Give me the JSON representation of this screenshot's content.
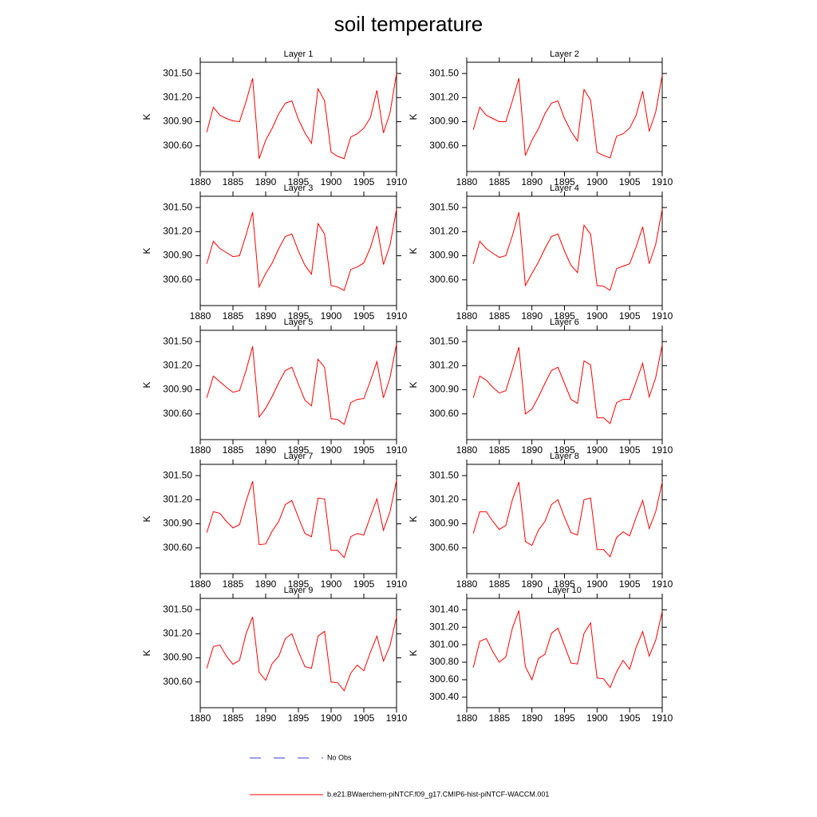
{
  "title": "soil temperature",
  "legend": [
    {
      "name": "No Obs",
      "color": "#3b3bd6",
      "dashed": true
    },
    {
      "name": "b.e21.BWaerchem-piNTCF.f09_g17.CMIP6-hist-piNTCF-WACCM.001",
      "color": "#ff0000",
      "dashed": false
    }
  ],
  "chart_data": [
    {
      "type": "line",
      "title": "Layer 1",
      "y_label": "K",
      "color": "#ff0000",
      "x": [
        1881,
        1882,
        1883,
        1884,
        1885,
        1886,
        1887,
        1888,
        1889,
        1890,
        1891,
        1892,
        1893,
        1894,
        1895,
        1896,
        1897,
        1898,
        1899,
        1900,
        1901,
        1902,
        1903,
        1904,
        1905,
        1906,
        1907,
        1908,
        1909,
        1910
      ],
      "values": [
        300.77,
        301.08,
        300.98,
        300.94,
        300.91,
        300.9,
        301.15,
        301.44,
        300.44,
        300.67,
        300.82,
        301.0,
        301.13,
        301.16,
        300.93,
        300.76,
        300.63,
        301.31,
        301.16,
        300.52,
        300.47,
        300.44,
        300.71,
        300.75,
        300.82,
        300.95,
        301.29,
        300.76,
        301.01,
        301.5
      ],
      "xlim": [
        1880,
        1910
      ],
      "xticks": [
        1880,
        1885,
        1890,
        1895,
        1900,
        1905,
        1910
      ],
      "ylim": [
        300.28,
        301.64
      ],
      "yticks": [
        {
          "value": 300.6,
          "label": "300.60"
        },
        {
          "value": 300.9,
          "label": "300.90"
        },
        {
          "value": 301.2,
          "label": "301.20"
        },
        {
          "value": 301.5,
          "label": "301.50"
        }
      ]
    },
    {
      "type": "line",
      "title": "Layer 2",
      "y_label": "K",
      "color": "#ff0000",
      "x": [
        1881,
        1882,
        1883,
        1884,
        1885,
        1886,
        1887,
        1888,
        1889,
        1890,
        1891,
        1892,
        1893,
        1894,
        1895,
        1896,
        1897,
        1898,
        1899,
        1900,
        1901,
        1902,
        1903,
        1904,
        1905,
        1906,
        1907,
        1908,
        1909,
        1910
      ],
      "values": [
        300.8,
        301.08,
        300.98,
        300.94,
        300.9,
        300.9,
        301.16,
        301.44,
        300.48,
        300.67,
        300.81,
        301.0,
        301.13,
        301.16,
        300.94,
        300.78,
        300.66,
        301.3,
        301.17,
        300.52,
        300.48,
        300.45,
        300.72,
        300.75,
        300.82,
        300.98,
        301.28,
        300.78,
        301.02,
        301.48
      ],
      "xlim": [
        1880,
        1910
      ],
      "xticks": [
        1880,
        1885,
        1890,
        1895,
        1900,
        1905,
        1910
      ],
      "ylim": [
        300.28,
        301.64
      ],
      "yticks": [
        {
          "value": 300.6,
          "label": "300.60"
        },
        {
          "value": 300.9,
          "label": "300.90"
        },
        {
          "value": 301.2,
          "label": "301.20"
        },
        {
          "value": 301.5,
          "label": "301.50"
        }
      ]
    },
    {
      "type": "line",
      "title": "Layer 3",
      "y_label": "K",
      "color": "#ff0000",
      "x": [
        1881,
        1882,
        1883,
        1884,
        1885,
        1886,
        1887,
        1888,
        1889,
        1890,
        1891,
        1892,
        1893,
        1894,
        1895,
        1896,
        1897,
        1898,
        1899,
        1900,
        1901,
        1902,
        1903,
        1904,
        1905,
        1906,
        1907,
        1908,
        1909,
        1910
      ],
      "values": [
        300.8,
        301.08,
        300.99,
        300.94,
        300.89,
        300.9,
        301.16,
        301.44,
        300.51,
        300.68,
        300.81,
        300.99,
        301.14,
        301.17,
        300.96,
        300.78,
        300.67,
        301.3,
        301.17,
        300.53,
        300.51,
        300.47,
        300.73,
        300.76,
        300.81,
        301.0,
        301.27,
        300.79,
        301.03,
        301.48
      ],
      "xlim": [
        1880,
        1910
      ],
      "xticks": [
        1880,
        1885,
        1890,
        1895,
        1900,
        1905,
        1910
      ],
      "ylim": [
        300.28,
        301.64
      ],
      "yticks": [
        {
          "value": 300.6,
          "label": "300.60"
        },
        {
          "value": 300.9,
          "label": "300.90"
        },
        {
          "value": 301.2,
          "label": "301.20"
        },
        {
          "value": 301.5,
          "label": "301.50"
        }
      ]
    },
    {
      "type": "line",
      "title": "Layer 4",
      "y_label": "K",
      "color": "#ff0000",
      "x": [
        1881,
        1882,
        1883,
        1884,
        1885,
        1886,
        1887,
        1888,
        1889,
        1890,
        1891,
        1892,
        1893,
        1894,
        1895,
        1896,
        1897,
        1898,
        1899,
        1900,
        1901,
        1902,
        1903,
        1904,
        1905,
        1906,
        1907,
        1908,
        1909,
        1910
      ],
      "values": [
        300.8,
        301.08,
        300.99,
        300.93,
        300.88,
        300.9,
        301.15,
        301.44,
        300.53,
        300.68,
        300.82,
        300.99,
        301.14,
        301.17,
        300.96,
        300.78,
        300.69,
        301.28,
        301.17,
        300.53,
        300.52,
        300.47,
        300.74,
        300.77,
        300.8,
        301.01,
        301.26,
        300.8,
        301.04,
        301.48
      ],
      "xlim": [
        1880,
        1910
      ],
      "xticks": [
        1880,
        1885,
        1890,
        1895,
        1900,
        1905,
        1910
      ],
      "ylim": [
        300.28,
        301.64
      ],
      "yticks": [
        {
          "value": 300.6,
          "label": "300.60"
        },
        {
          "value": 300.9,
          "label": "300.90"
        },
        {
          "value": 301.2,
          "label": "301.20"
        },
        {
          "value": 301.5,
          "label": "301.50"
        }
      ]
    },
    {
      "type": "line",
      "title": "Layer 5",
      "y_label": "K",
      "color": "#ff0000",
      "x": [
        1881,
        1882,
        1883,
        1884,
        1885,
        1886,
        1887,
        1888,
        1889,
        1890,
        1891,
        1892,
        1893,
        1894,
        1895,
        1896,
        1897,
        1898,
        1899,
        1900,
        1901,
        1902,
        1903,
        1904,
        1905,
        1906,
        1907,
        1908,
        1909,
        1910
      ],
      "values": [
        300.8,
        301.07,
        301.0,
        300.93,
        300.87,
        300.89,
        301.14,
        301.44,
        300.56,
        300.67,
        300.82,
        300.99,
        301.14,
        301.18,
        300.97,
        300.77,
        300.7,
        301.28,
        301.18,
        300.54,
        300.53,
        300.47,
        300.74,
        300.78,
        300.79,
        301.01,
        301.25,
        300.8,
        301.05,
        301.47
      ],
      "xlim": [
        1880,
        1910
      ],
      "xticks": [
        1880,
        1885,
        1890,
        1895,
        1900,
        1905,
        1910
      ],
      "ylim": [
        300.28,
        301.64
      ],
      "yticks": [
        {
          "value": 300.6,
          "label": "300.60"
        },
        {
          "value": 300.9,
          "label": "300.90"
        },
        {
          "value": 301.2,
          "label": "301.20"
        },
        {
          "value": 301.5,
          "label": "301.50"
        }
      ]
    },
    {
      "type": "line",
      "title": "Layer 6",
      "y_label": "K",
      "color": "#ff0000",
      "x": [
        1881,
        1882,
        1883,
        1884,
        1885,
        1886,
        1887,
        1888,
        1889,
        1890,
        1891,
        1892,
        1893,
        1894,
        1895,
        1896,
        1897,
        1898,
        1899,
        1900,
        1901,
        1902,
        1903,
        1904,
        1905,
        1906,
        1907,
        1908,
        1909,
        1910
      ],
      "values": [
        300.8,
        301.07,
        301.02,
        300.93,
        300.86,
        300.89,
        301.15,
        301.43,
        300.6,
        300.66,
        300.81,
        300.98,
        301.14,
        301.18,
        300.98,
        300.78,
        300.73,
        301.26,
        301.21,
        300.55,
        300.55,
        300.48,
        300.74,
        300.78,
        300.78,
        301.0,
        301.23,
        300.81,
        301.05,
        301.46
      ],
      "xlim": [
        1880,
        1910
      ],
      "xticks": [
        1880,
        1885,
        1890,
        1895,
        1900,
        1905,
        1910
      ],
      "ylim": [
        300.28,
        301.64
      ],
      "yticks": [
        {
          "value": 300.6,
          "label": "300.60"
        },
        {
          "value": 300.9,
          "label": "300.90"
        },
        {
          "value": 301.2,
          "label": "301.20"
        },
        {
          "value": 301.5,
          "label": "301.50"
        }
      ]
    },
    {
      "type": "line",
      "title": "Layer 7",
      "y_label": "K",
      "color": "#ff0000",
      "x": [
        1881,
        1882,
        1883,
        1884,
        1885,
        1886,
        1887,
        1888,
        1889,
        1890,
        1891,
        1892,
        1893,
        1894,
        1895,
        1896,
        1897,
        1898,
        1899,
        1900,
        1901,
        1902,
        1903,
        1904,
        1905,
        1906,
        1907,
        1908,
        1909,
        1910
      ],
      "values": [
        300.79,
        301.05,
        301.03,
        300.93,
        300.85,
        300.89,
        301.18,
        301.43,
        300.64,
        300.65,
        300.81,
        300.93,
        301.14,
        301.19,
        300.98,
        300.78,
        300.74,
        301.22,
        301.21,
        300.57,
        300.57,
        300.48,
        300.74,
        300.78,
        300.76,
        300.99,
        301.21,
        300.82,
        301.05,
        301.44
      ],
      "xlim": [
        1880,
        1910
      ],
      "xticks": [
        1880,
        1885,
        1890,
        1895,
        1900,
        1905,
        1910
      ],
      "ylim": [
        300.28,
        301.64
      ],
      "yticks": [
        {
          "value": 300.6,
          "label": "300.60"
        },
        {
          "value": 300.9,
          "label": "300.90"
        },
        {
          "value": 301.2,
          "label": "301.20"
        },
        {
          "value": 301.5,
          "label": "301.50"
        }
      ]
    },
    {
      "type": "line",
      "title": "Layer 8",
      "y_label": "K",
      "color": "#ff0000",
      "x": [
        1881,
        1882,
        1883,
        1884,
        1885,
        1886,
        1887,
        1888,
        1889,
        1890,
        1891,
        1892,
        1893,
        1894,
        1895,
        1896,
        1897,
        1898,
        1899,
        1900,
        1901,
        1902,
        1903,
        1904,
        1905,
        1906,
        1907,
        1908,
        1909,
        1910
      ],
      "values": [
        300.78,
        301.05,
        301.05,
        300.93,
        300.83,
        300.88,
        301.2,
        301.42,
        300.68,
        300.63,
        300.82,
        300.93,
        301.14,
        301.2,
        300.98,
        300.79,
        300.76,
        301.2,
        301.22,
        300.58,
        300.58,
        300.49,
        300.73,
        300.8,
        300.75,
        300.98,
        301.19,
        300.84,
        301.05,
        301.42
      ],
      "xlim": [
        1880,
        1910
      ],
      "xticks": [
        1880,
        1885,
        1890,
        1895,
        1900,
        1905,
        1910
      ],
      "ylim": [
        300.28,
        301.64
      ],
      "yticks": [
        {
          "value": 300.6,
          "label": "300.60"
        },
        {
          "value": 300.9,
          "label": "300.90"
        },
        {
          "value": 301.2,
          "label": "301.20"
        },
        {
          "value": 301.5,
          "label": "301.50"
        }
      ]
    },
    {
      "type": "line",
      "title": "Layer 9",
      "y_label": "K",
      "color": "#ff0000",
      "x": [
        1881,
        1882,
        1883,
        1884,
        1885,
        1886,
        1887,
        1888,
        1889,
        1890,
        1891,
        1892,
        1893,
        1894,
        1895,
        1896,
        1897,
        1898,
        1899,
        1900,
        1901,
        1902,
        1903,
        1904,
        1905,
        1906,
        1907,
        1908,
        1909,
        1910
      ],
      "values": [
        300.77,
        301.04,
        301.06,
        300.92,
        300.82,
        300.87,
        301.2,
        301.41,
        300.72,
        300.62,
        300.83,
        300.92,
        301.14,
        301.2,
        300.98,
        300.79,
        300.77,
        301.17,
        301.23,
        300.6,
        300.59,
        300.49,
        300.71,
        300.81,
        300.74,
        300.97,
        301.17,
        300.86,
        301.05,
        301.41
      ],
      "xlim": [
        1880,
        1910
      ],
      "xticks": [
        1880,
        1885,
        1890,
        1895,
        1900,
        1905,
        1910
      ],
      "ylim": [
        300.28,
        301.64
      ],
      "yticks": [
        {
          "value": 300.6,
          "label": "300.60"
        },
        {
          "value": 300.9,
          "label": "300.90"
        },
        {
          "value": 301.2,
          "label": "301.20"
        },
        {
          "value": 301.5,
          "label": "301.50"
        }
      ]
    },
    {
      "type": "line",
      "title": "Layer 10",
      "y_label": "K",
      "color": "#ff0000",
      "x": [
        1881,
        1882,
        1883,
        1884,
        1885,
        1886,
        1887,
        1888,
        1889,
        1890,
        1891,
        1892,
        1893,
        1894,
        1895,
        1896,
        1897,
        1898,
        1899,
        1900,
        1901,
        1902,
        1903,
        1904,
        1905,
        1906,
        1907,
        1908,
        1909,
        1910
      ],
      "values": [
        300.74,
        301.04,
        301.07,
        300.92,
        300.8,
        300.86,
        301.19,
        301.39,
        300.75,
        300.6,
        300.84,
        300.89,
        301.13,
        301.19,
        300.99,
        300.79,
        300.78,
        301.13,
        301.25,
        300.62,
        300.61,
        300.51,
        300.69,
        300.82,
        300.72,
        300.97,
        301.15,
        300.87,
        301.05,
        301.38
      ],
      "xlim": [
        1880,
        1910
      ],
      "xticks": [
        1880,
        1885,
        1890,
        1895,
        1900,
        1905,
        1910
      ],
      "ylim": [
        300.28,
        301.53
      ],
      "yticks": [
        {
          "value": 300.4,
          "label": "300.40"
        },
        {
          "value": 300.6,
          "label": "300.60"
        },
        {
          "value": 300.8,
          "label": "300.80"
        },
        {
          "value": 301.0,
          "label": "301.00"
        },
        {
          "value": 301.2,
          "label": "301.20"
        },
        {
          "value": 301.4,
          "label": "301.40"
        }
      ]
    }
  ]
}
